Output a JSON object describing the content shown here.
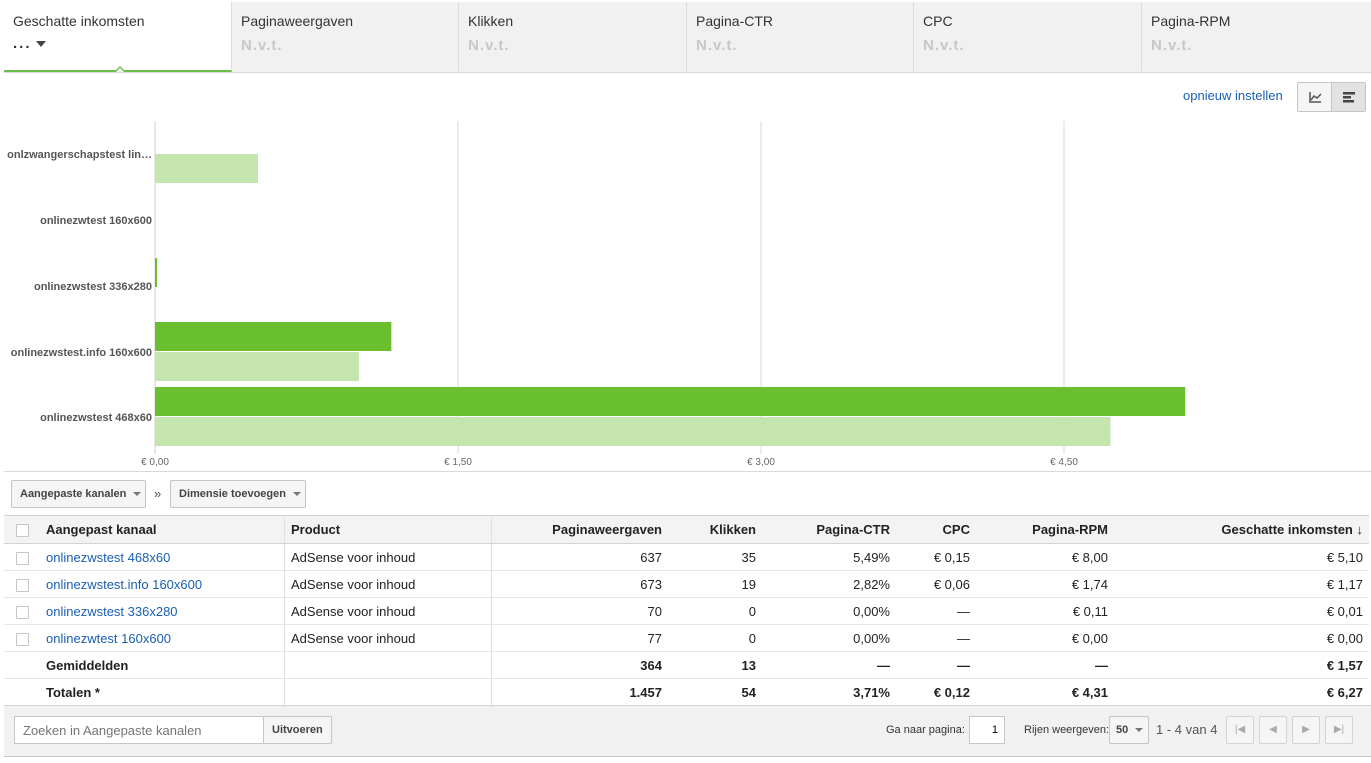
{
  "metric_tabs": [
    {
      "label": "Geschatte inkomsten",
      "value": "..."
    },
    {
      "label": "Paginaweergaven",
      "value": "N.v.t."
    },
    {
      "label": "Klikken",
      "value": "N.v.t."
    },
    {
      "label": "Pagina-CTR",
      "value": "N.v.t."
    },
    {
      "label": "CPC",
      "value": "N.v.t."
    },
    {
      "label": "Pagina-RPM",
      "value": "N.v.t."
    }
  ],
  "reset_label": "opnieuw instellen",
  "colors": {
    "accent": "#6abf4b",
    "bar_dark": "#6abf2e",
    "bar_light": "#c4e5ad",
    "link": "#1a5fb4"
  },
  "icons": {
    "line_view": "line-chart-icon",
    "bar_view": "bar-chart-icon"
  },
  "chart_data": {
    "type": "bar",
    "orientation": "horizontal",
    "categories": [
      "onlzwangerschapstest lin…",
      "onlinezwtest 160x600",
      "onlinezwstest 336x280",
      "onlinezwstest.info 160x600",
      "onlinezwstest 468x60"
    ],
    "series": [
      {
        "values": [
          0,
          0,
          0.01,
          1.17,
          5.1
        ]
      },
      {
        "values": [
          0.51,
          0,
          0,
          1.01,
          4.73
        ]
      }
    ],
    "xlim": [
      0,
      6.0
    ],
    "xticks": [
      "€ 0,00",
      "€ 1,50",
      "€ 3,00",
      "€ 4,50"
    ],
    "grid": true
  },
  "dimension_bar": {
    "channels_button": "Aangepaste kanalen",
    "separator": "»",
    "add_dimension_button": "Dimensie toevoegen"
  },
  "table": {
    "headers": [
      "Aangepast kanaal",
      "Product",
      "Paginaweergaven",
      "Klikken",
      "Pagina-CTR",
      "CPC",
      "Pagina-RPM",
      "Geschatte inkomsten ↓"
    ],
    "rows": [
      [
        "onlinezwstest 468x60",
        "AdSense voor inhoud",
        "637",
        "35",
        "5,49%",
        "€ 0,15",
        "€ 8,00",
        "€ 5,10"
      ],
      [
        "onlinezwstest.info 160x600",
        "AdSense voor inhoud",
        "673",
        "19",
        "2,82%",
        "€ 0,06",
        "€ 1,74",
        "€ 1,17"
      ],
      [
        "onlinezwstest 336x280",
        "AdSense voor inhoud",
        "70",
        "0",
        "0,00%",
        "—",
        "€ 0,11",
        "€ 0,01"
      ],
      [
        "onlinezwtest 160x600",
        "AdSense voor inhoud",
        "77",
        "0",
        "0,00%",
        "—",
        "€ 0,00",
        "€ 0,00"
      ]
    ],
    "averages": [
      "Gemiddelden",
      "",
      "364",
      "13",
      "—",
      "—",
      "—",
      "€ 1,57"
    ],
    "totals": [
      "Totalen *",
      "",
      "1.457",
      "54",
      "3,71%",
      "€ 0,12",
      "€ 4,31",
      "€ 6,27"
    ]
  },
  "footer": {
    "search_placeholder": "Zoeken in Aangepaste kanalen",
    "run_button": "Uitvoeren",
    "goto_page_label": "Ga naar pagina:",
    "page_value": "1",
    "rows_label": "Rijen weergeven:",
    "rows_value": "50",
    "range_text": "1 - 4 van 4"
  }
}
